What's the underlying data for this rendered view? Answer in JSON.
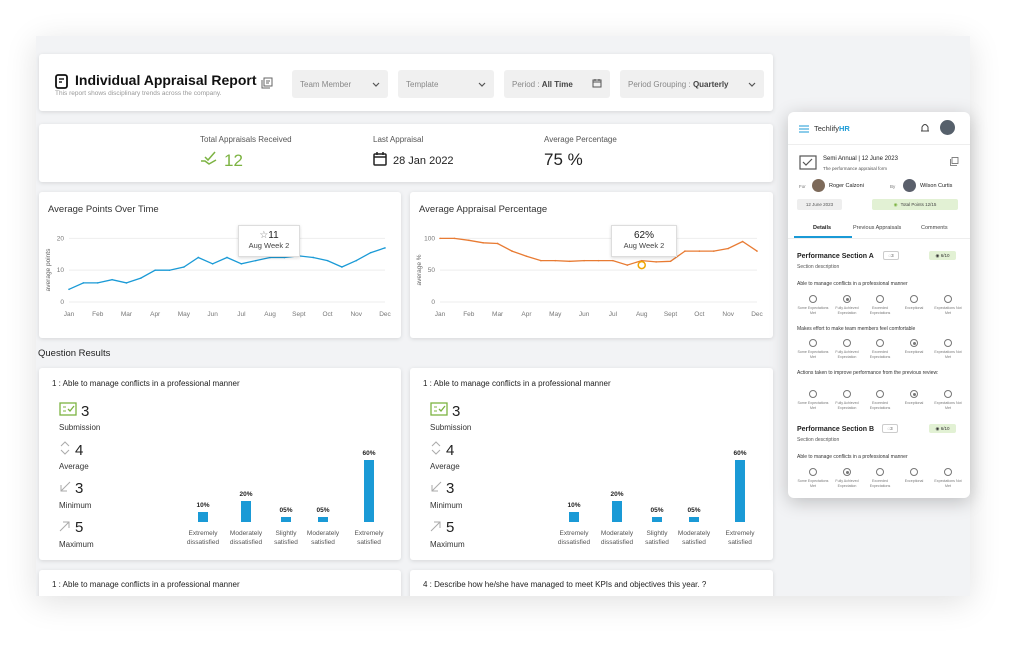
{
  "header": {
    "title": "Individual Appraisal Report",
    "subtitle": "This report shows disciplinary trends across the company.",
    "filters": {
      "team_member": "Team Member",
      "template": "Template",
      "period_label": "Period : ",
      "period_value": "All Time",
      "grouping_label": "Period Grouping : ",
      "grouping_value": "Quarterly"
    }
  },
  "stats": {
    "total_label": "Total Appraisals Received",
    "total_value": "12",
    "last_label": "Last Appraisal",
    "last_value": "28 Jan 2022",
    "avg_label": "Average Percentage",
    "avg_value": "75 %"
  },
  "charts": {
    "points": {
      "title": "Average Points Over Time",
      "ylabel": "average points",
      "tooltip_value": "11",
      "tooltip_label": "Aug Week 2"
    },
    "percentage": {
      "title": "Average Appraisal Percentage",
      "ylabel": "average %",
      "tooltip_value": "62%",
      "tooltip_label": "Aug Week 2"
    }
  },
  "chart_data": [
    {
      "type": "line",
      "title": "Average Points Over Time",
      "ylabel": "average points",
      "categories": [
        "Jan",
        "Feb",
        "Mar",
        "Apr",
        "May",
        "Jun",
        "Jul",
        "Aug",
        "Sept",
        "Oct",
        "Nov",
        "Dec"
      ],
      "yticks": [
        0,
        10,
        20
      ],
      "ylim": [
        0,
        22
      ],
      "color": "#1a9ad6",
      "x": [
        0,
        0.5,
        1,
        1.5,
        2,
        2.5,
        3,
        3.5,
        4,
        4.5,
        5,
        5.5,
        6,
        6.5,
        7,
        7.5,
        8,
        8.5,
        9,
        9.5,
        10,
        10.5,
        11
      ],
      "values": [
        4,
        6,
        6,
        7,
        6,
        7.5,
        10,
        10,
        11,
        14,
        12,
        14,
        12,
        13,
        14,
        14,
        14.5,
        14,
        13,
        11,
        13,
        15.5,
        17
      ]
    },
    {
      "type": "line",
      "title": "Average Appraisal Percentage",
      "ylabel": "average %",
      "categories": [
        "Jan",
        "Feb",
        "Mar",
        "Apr",
        "May",
        "Jun",
        "Jul",
        "Aug",
        "Sept",
        "Oct",
        "Nov",
        "Dec"
      ],
      "yticks": [
        0,
        50,
        100
      ],
      "ylim": [
        0,
        110
      ],
      "color": "#e87b33",
      "x": [
        0,
        0.5,
        1,
        1.5,
        2,
        2.5,
        3,
        3.5,
        4,
        4.5,
        5,
        5.5,
        6,
        6.5,
        7,
        7.5,
        8,
        8.5,
        9,
        9.5,
        10,
        10.5,
        11
      ],
      "values": [
        100,
        100,
        97,
        93,
        92,
        80,
        72,
        65,
        65,
        64,
        65,
        65,
        65,
        58,
        65,
        63,
        64,
        80,
        80,
        80,
        84,
        95,
        80
      ]
    }
  ],
  "questions": {
    "section_title": "Question Results",
    "cards": [
      {
        "title": "1 : Able to manage conflicts in a professional manner",
        "submission": "3",
        "submission_label": "Submission",
        "average": "4",
        "average_label": "Average",
        "minimum": "3",
        "minimum_label": "Minimum",
        "maximum": "5",
        "maximum_label": "Maximum"
      },
      {
        "title": "1 : Able to manage conflicts in a professional manner",
        "submission": "3",
        "submission_label": "Submission",
        "average": "4",
        "average_label": "Average",
        "minimum": "3",
        "minimum_label": "Minimum",
        "maximum": "5",
        "maximum_label": "Maximum"
      }
    ],
    "distribution": {
      "labels": [
        "Extremely dissatisfied",
        "Moderately dissatisfied",
        "Slightly satisfied",
        "Moderately satisfied",
        "Extremely satisfied"
      ],
      "pct_labels": [
        "10%",
        "20%",
        "05%",
        "05%",
        "60%"
      ],
      "values": [
        10,
        20,
        5,
        5,
        60
      ]
    },
    "bottom_cards": [
      "1 : Able to manage conflicts in a professional manner",
      "4 : Describe how he/she have managed to meet KPIs and objectives this year. ?"
    ]
  },
  "phone": {
    "brand_prefix": "Techlify",
    "brand_suffix": "HR",
    "form_title": "Semi Annual | 12 June 2023",
    "form_subtitle": "The performance appraisal form",
    "for_label": "For",
    "for_name": "Roger Calzoni",
    "by_label": "By",
    "by_name": "Wilson Curtis",
    "date_tag": "12 June 2023",
    "points_tag": "Total Points 12/15",
    "tabs": [
      "Details",
      "Previous Appraisals",
      "Comments"
    ],
    "section_a": "Performance Section A",
    "section_a_comments": "3",
    "section_a_score": "6/10",
    "section_b": "Performance Section B",
    "section_b_comments": "3",
    "section_b_score": "6/10",
    "section_desc": "Section description",
    "scale": [
      "Some Expectations Met",
      "Fully Achieved Expectation",
      "Exceeded Expectations",
      "Exceptional",
      "Expectations Not Met"
    ],
    "questions_a": [
      "Able to manage conflicts in a professional manner",
      "Makes effort to make team members feel comfortable",
      "Actions taken to improve performance from the previous review:"
    ],
    "question_b": "Able to manage conflicts in a professional manner"
  }
}
